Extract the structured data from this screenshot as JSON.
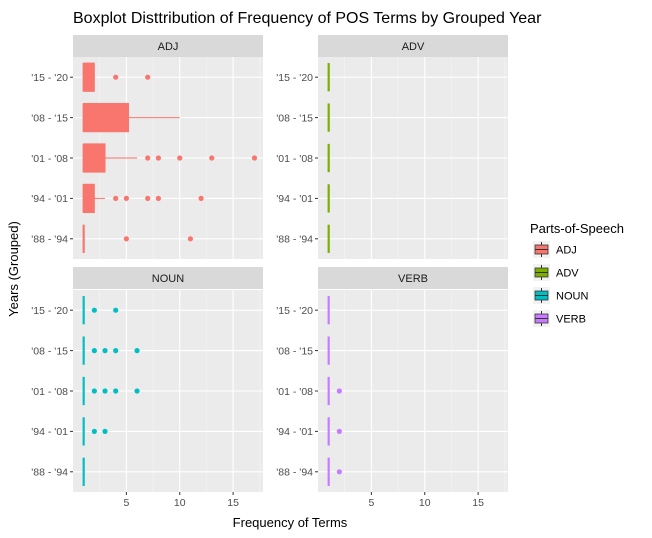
{
  "chart_data": {
    "type": "boxplot",
    "title": "Boxplot Disttribution of Frequency of POS Terms by Grouped Year",
    "xlabel": "Frequency of Terms",
    "ylabel": "Years (Grouped)",
    "xlim": [
      0.0,
      17.8
    ],
    "x_ticks": [
      5,
      10,
      15
    ],
    "categories": [
      "'15 - '20",
      "'08 - '15",
      "'01 - '08",
      "'94 - '01",
      "'88 - '94"
    ],
    "legend": {
      "title": "Parts-of-Speech",
      "position": "right",
      "items": [
        {
          "name": "ADJ",
          "color": "#F8766D"
        },
        {
          "name": "ADV",
          "color": "#7CAE00"
        },
        {
          "name": "NOUN",
          "color": "#00BFC4"
        },
        {
          "name": "VERB",
          "color": "#C77CFF"
        }
      ]
    },
    "panels": [
      {
        "name": "ADJ",
        "color": "#F8766D",
        "boxes": [
          {
            "category": "'15 - '20",
            "min": 1,
            "q1": 1,
            "median": 1,
            "q3": 2,
            "max": 2,
            "outliers": [
              4,
              7
            ]
          },
          {
            "category": "'08 - '15",
            "min": 1,
            "q1": 1,
            "median": 1,
            "q3": 5.2,
            "max": 10,
            "outliers": []
          },
          {
            "category": "'01 - '08",
            "min": 1,
            "q1": 1,
            "median": 1,
            "q3": 3,
            "max": 6,
            "outliers": [
              7,
              8,
              10,
              13,
              17
            ]
          },
          {
            "category": "'94 - '01",
            "min": 1,
            "q1": 1,
            "median": 1,
            "q3": 2,
            "max": 3,
            "outliers": [
              4,
              5,
              7,
              8,
              12
            ]
          },
          {
            "category": "'88 - '94",
            "min": 1,
            "q1": 1,
            "median": 1,
            "q3": 1,
            "max": 1,
            "outliers": [
              5,
              11
            ]
          }
        ]
      },
      {
        "name": "ADV",
        "color": "#7CAE00",
        "boxes": [
          {
            "category": "'15 - '20",
            "min": 1,
            "q1": 1,
            "median": 1,
            "q3": 1,
            "max": 1,
            "outliers": []
          },
          {
            "category": "'08 - '15",
            "min": 1,
            "q1": 1,
            "median": 1,
            "q3": 1,
            "max": 1,
            "outliers": []
          },
          {
            "category": "'01 - '08",
            "min": 1,
            "q1": 1,
            "median": 1,
            "q3": 1,
            "max": 1,
            "outliers": []
          },
          {
            "category": "'94 - '01",
            "min": 1,
            "q1": 1,
            "median": 1,
            "q3": 1,
            "max": 1,
            "outliers": []
          },
          {
            "category": "'88 - '94",
            "min": 1,
            "q1": 1,
            "median": 1,
            "q3": 1,
            "max": 1,
            "outliers": []
          }
        ]
      },
      {
        "name": "NOUN",
        "color": "#00BFC4",
        "boxes": [
          {
            "category": "'15 - '20",
            "min": 1,
            "q1": 1,
            "median": 1,
            "q3": 1,
            "max": 1,
            "outliers": [
              2,
              4
            ]
          },
          {
            "category": "'08 - '15",
            "min": 1,
            "q1": 1,
            "median": 1,
            "q3": 1,
            "max": 1,
            "outliers": [
              2,
              3,
              4,
              6
            ]
          },
          {
            "category": "'01 - '08",
            "min": 1,
            "q1": 1,
            "median": 1,
            "q3": 1,
            "max": 1,
            "outliers": [
              2,
              3,
              4,
              6
            ]
          },
          {
            "category": "'94 - '01",
            "min": 1,
            "q1": 1,
            "median": 1,
            "q3": 1,
            "max": 1,
            "outliers": [
              2,
              3
            ]
          },
          {
            "category": "'88 - '94",
            "min": 1,
            "q1": 1,
            "median": 1,
            "q3": 1,
            "max": 1,
            "outliers": []
          }
        ]
      },
      {
        "name": "VERB",
        "color": "#C77CFF",
        "boxes": [
          {
            "category": "'15 - '20",
            "min": 1,
            "q1": 1,
            "median": 1,
            "q3": 1,
            "max": 1,
            "outliers": []
          },
          {
            "category": "'08 - '15",
            "min": 1,
            "q1": 1,
            "median": 1,
            "q3": 1,
            "max": 1,
            "outliers": []
          },
          {
            "category": "'01 - '08",
            "min": 1,
            "q1": 1,
            "median": 1,
            "q3": 1,
            "max": 1,
            "outliers": [
              2
            ]
          },
          {
            "category": "'94 - '01",
            "min": 1,
            "q1": 1,
            "median": 1,
            "q3": 1,
            "max": 1,
            "outliers": [
              2
            ]
          },
          {
            "category": "'88 - '94",
            "min": 1,
            "q1": 1,
            "median": 1,
            "q3": 1,
            "max": 1,
            "outliers": [
              2
            ]
          }
        ]
      }
    ]
  }
}
